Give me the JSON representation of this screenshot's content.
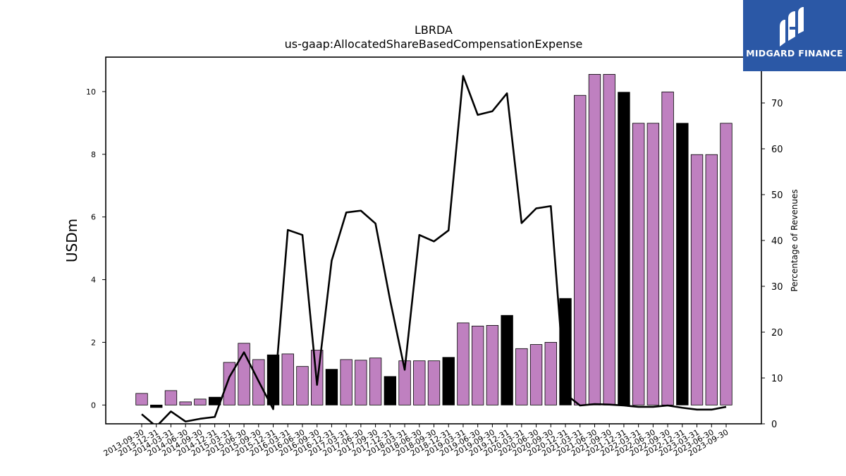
{
  "title": "LBRDA",
  "subtitle": "us-gaap:AllocatedShareBasedCompensationExpense",
  "logo": {
    "text": "MIDGARD FINANCE",
    "icon": "midgard-logo-icon",
    "bg_color": "#2b58a6"
  },
  "colors": {
    "bar_default": "#bf80c0",
    "bar_highlight": "#000000",
    "line": "#000000"
  },
  "chart_data": {
    "type": "bar",
    "title": "LBRDA",
    "subtitle": "us-gaap:AllocatedShareBasedCompensationExpense",
    "ylabel": "USDm",
    "y2label": "Percentage of Revenues",
    "ylim": [
      -0.6,
      11.1
    ],
    "y2lim": [
      0,
      80
    ],
    "yticks": [
      0,
      2,
      4,
      6,
      8,
      10
    ],
    "y2ticks": [
      0,
      10,
      20,
      30,
      40,
      50,
      60,
      70
    ],
    "categories": [
      "2013-09-30",
      "2013-12-31",
      "2014-03-31",
      "2014-06-30",
      "2014-09-30",
      "2014-12-31",
      "2015-03-31",
      "2015-06-30",
      "2015-09-30",
      "2015-12-31",
      "2016-03-31",
      "2016-06-30",
      "2016-09-30",
      "2016-12-31",
      "2017-03-31",
      "2017-06-30",
      "2017-09-30",
      "2017-12-31",
      "2018-03-31",
      "2018-06-30",
      "2018-09-30",
      "2018-12-31",
      "2019-03-31",
      "2019-06-30",
      "2019-09-30",
      "2019-12-31",
      "2020-03-31",
      "2020-06-30",
      "2020-09-30",
      "2020-12-31",
      "2021-03-31",
      "2021-06-30",
      "2021-09-30",
      "2021-12-31",
      "2022-03-31",
      "2022-06-30",
      "2022-09-30",
      "2022-12-31",
      "2023-03-31",
      "2023-06-30",
      "2023-09-30"
    ],
    "series": [
      {
        "type": "bar",
        "values": [
          0.37,
          -0.08,
          0.46,
          0.1,
          0.19,
          0.25,
          1.36,
          1.97,
          1.45,
          1.6,
          1.63,
          1.23,
          1.75,
          1.14,
          1.45,
          1.43,
          1.5,
          0.91,
          1.41,
          1.41,
          1.41,
          1.52,
          2.62,
          2.52,
          2.54,
          2.86,
          1.8,
          1.93,
          2.0,
          3.4,
          9.88,
          10.55,
          10.55,
          9.98,
          8.99,
          8.99,
          9.99,
          8.99,
          7.99,
          7.99,
          8.99
        ],
        "highlight": [
          false,
          true,
          false,
          false,
          false,
          true,
          false,
          false,
          false,
          true,
          false,
          false,
          false,
          true,
          false,
          false,
          false,
          true,
          false,
          false,
          false,
          true,
          false,
          false,
          false,
          true,
          false,
          false,
          false,
          true,
          false,
          false,
          false,
          true,
          false,
          false,
          false,
          true,
          false,
          false,
          false
        ]
      },
      {
        "type": "line",
        "axis": "right",
        "values": [
          2.1,
          -0.6,
          2.7,
          0.5,
          1.1,
          1.5,
          10.2,
          15.6,
          9.3,
          3.2,
          42.3,
          41.2,
          8.5,
          35.6,
          46.1,
          46.5,
          43.7,
          27.0,
          11.8,
          41.2,
          39.8,
          42.2,
          75.9,
          67.4,
          68.2,
          72.1,
          43.8,
          47.0,
          47.5,
          6.5,
          4.0,
          4.3,
          4.2,
          4.0,
          3.7,
          3.7,
          4.0,
          3.5,
          3.1,
          3.1,
          3.7
        ]
      }
    ],
    "grid": false,
    "legend": "none"
  }
}
